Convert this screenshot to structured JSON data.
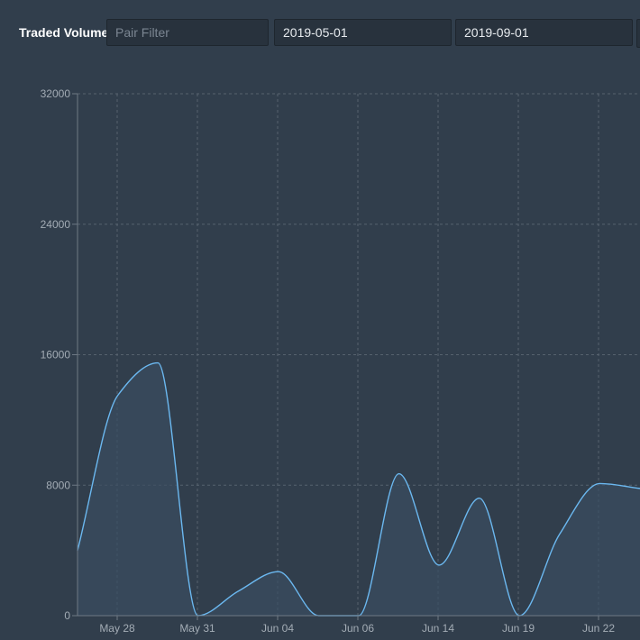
{
  "toolbar": {
    "title": "Traded Volume",
    "pair_filter_placeholder": "Pair Filter",
    "pair_filter_value": "",
    "date_from": "2019-05-01",
    "date_to": "2019-09-01"
  },
  "colors": {
    "background": "#313e4c",
    "series_line": "#6bb8f0",
    "series_fill": "#3a4d61"
  },
  "chart_data": {
    "type": "area",
    "title": "",
    "xlabel": "",
    "ylabel": "",
    "ylim": [
      0,
      32000
    ],
    "y_ticks": [
      0,
      8000,
      16000,
      24000,
      32000
    ],
    "x_ticks": [
      "May 28",
      "May 31",
      "Jun 04",
      "Jun 06",
      "Jun 14",
      "Jun 19",
      "Jun 22"
    ],
    "grid": true,
    "legend": "none",
    "series": [
      {
        "values": [
          4000,
          13500,
          15500,
          0,
          1500,
          2700,
          0,
          0,
          8700,
          3100,
          7200,
          0,
          5000,
          8100,
          7800
        ]
      }
    ]
  }
}
